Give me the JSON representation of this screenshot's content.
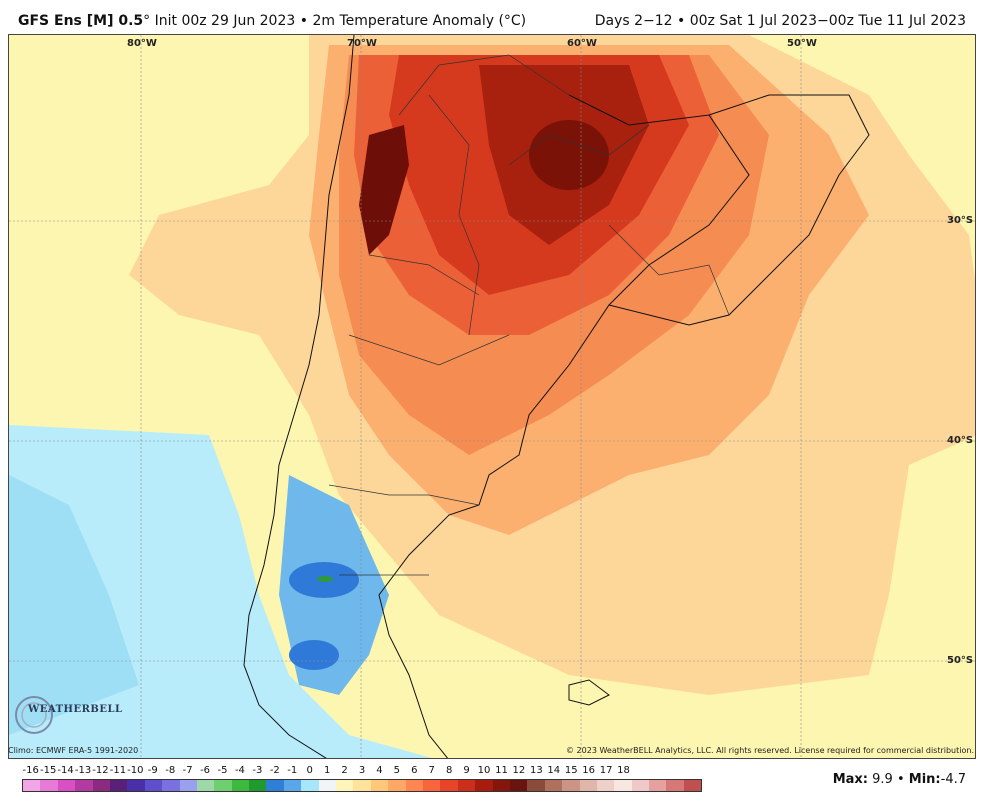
{
  "header": {
    "model": "GFS Ens [M] 0.5",
    "init": "Init 00z 29 Jun 2023",
    "variable": "2m Temperature Anomaly (°C)",
    "valid": "Days 2−12 • 00z Sat 1 Jul 2023−00z Tue 11 Jul 2023"
  },
  "axes": {
    "lon_labels": [
      "80°W",
      "70°W",
      "60°W",
      "50°W"
    ],
    "lat_labels": [
      "30°S",
      "40°S",
      "50°S"
    ]
  },
  "footer": {
    "clim": "Climo: ECMWF ERA-5 1991-2020",
    "copyright": "© 2023 WeatherBELL Analytics, LLC. All rights reserved. License required for commercial distribution.",
    "logo": "WEATHERBELL"
  },
  "colorbar": {
    "labels": [
      "-16",
      "-15",
      "-14",
      "-13",
      "-12",
      "-11",
      "-10",
      "-9",
      "-8",
      "-7",
      "-6",
      "-5",
      "-4",
      "-3",
      "-2",
      "-1",
      "0",
      "1",
      "2",
      "3",
      "4",
      "5",
      "6",
      "7",
      "8",
      "9",
      "10",
      "11",
      "12",
      "13",
      "14",
      "15",
      "16",
      "17",
      "18"
    ],
    "colors": [
      "#f2a6e6",
      "#e67ad6",
      "#d94fc4",
      "#b33aa3",
      "#8c2a80",
      "#5a1f78",
      "#4b2fa8",
      "#5f4fcf",
      "#7b70e0",
      "#9aa0ee",
      "#9fd8a8",
      "#6fcf6f",
      "#3fb83f",
      "#1f9a2f",
      "#2d7fd8",
      "#5aa6ea",
      "#a6e6fb",
      "#f0f4f8",
      "#fff5b8",
      "#ffe39a",
      "#ffc77a",
      "#ffa866",
      "#ff8650",
      "#f8643c",
      "#e8442a",
      "#cc2e1c",
      "#a81c10",
      "#85160c",
      "#6a1410",
      "#8a4a3c",
      "#b0705e",
      "#cc9484",
      "#e0b6aa",
      "#efd0c8",
      "#f8e6e0",
      "#f0c8c8",
      "#e6a0a0",
      "#d67878",
      "#c05050"
    ],
    "max_label": "Max:",
    "max_value": "9.9",
    "sep": "•",
    "min_label": "Min:",
    "min_value": "-4.7"
  },
  "palette": {
    "sea_yellow": "#fdf6b0",
    "pale_orange": "#fdd79a",
    "orange": "#fbb070",
    "dark_orange": "#f58c52",
    "red_orange": "#ec6038",
    "red": "#d63a1e",
    "dark_red": "#a8200e",
    "deep_red": "#6e0e08",
    "light_blue": "#b8ecfb",
    "mid_blue": "#6fb8ec",
    "blue": "#2f7ad8",
    "green": "#2e9a3a"
  }
}
